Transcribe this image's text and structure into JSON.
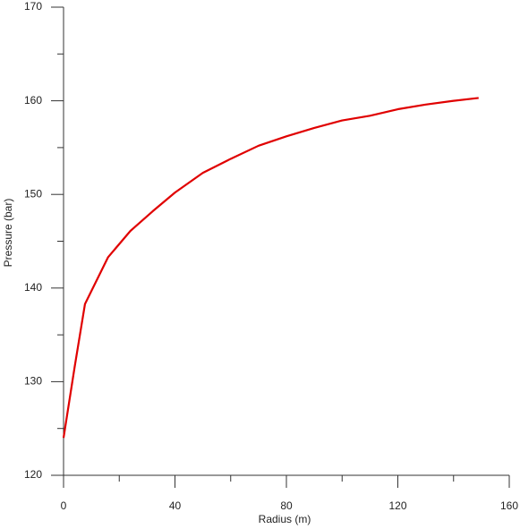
{
  "chart_data": {
    "type": "line",
    "x_label": "Radius (m)",
    "y_label": "Pressure (bar)",
    "series": [
      {
        "color": "#e00000",
        "x": [
          0,
          4,
          7.7,
          16,
          24,
          32,
          40,
          50,
          60,
          70,
          80,
          90,
          100,
          110,
          120,
          130,
          140,
          149
        ],
        "values": [
          124,
          131.6,
          138.3,
          143.3,
          146.1,
          148.2,
          150.2,
          152.3,
          153.8,
          155.2,
          156.2,
          157.1,
          157.9,
          158.4,
          159.1,
          159.6,
          160,
          160.3
        ]
      }
    ],
    "xlim": [
      0,
      160
    ],
    "xticks": [
      0,
      40,
      80,
      120,
      160
    ],
    "xminorticks": [
      20,
      60,
      100,
      140
    ],
    "ylim": [
      120,
      170
    ],
    "yticks": [
      120,
      130,
      140,
      150,
      160,
      170
    ],
    "yminorticks": [
      125,
      135,
      145,
      155,
      165
    ]
  }
}
